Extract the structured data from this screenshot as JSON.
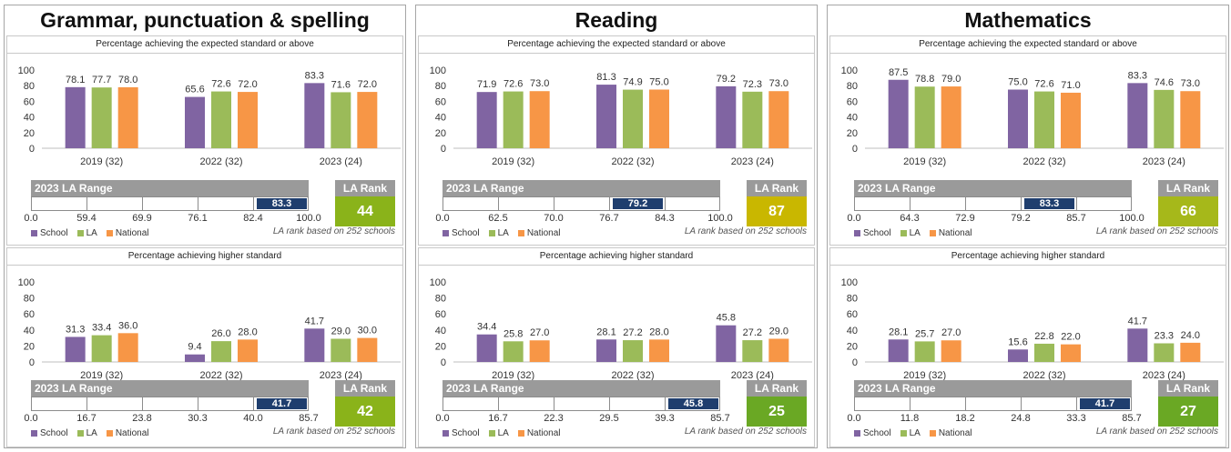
{
  "colors": {
    "school": "#8064a2",
    "la": "#9bbb59",
    "national": "#f79646",
    "range_title_bg": "#9a9a9a",
    "marker_bg": "#1f3e6e"
  },
  "common": {
    "expected_header": "Percentage achieving the expected standard or above",
    "higher_header": "Percentage achieving higher standard",
    "range_title": "2023 LA Range",
    "rank_title": "LA Rank",
    "legend": [
      "School",
      "LA",
      "National"
    ],
    "note": "LA rank based on 252 schools"
  },
  "panels": [
    {
      "title": "Grammar, punctuation & spelling",
      "sections": [
        {
          "header": "expected",
          "chart_data": {
            "type": "bar",
            "categories": [
              "2019 (32)",
              "2022 (32)",
              "2023 (24)"
            ],
            "series": [
              {
                "name": "School",
                "values": [
                  78.1,
                  65.6,
                  83.3
                ]
              },
              {
                "name": "LA",
                "values": [
                  77.7,
                  72.6,
                  71.6
                ]
              },
              {
                "name": "National",
                "values": [
                  78.0,
                  72.0,
                  72.0
                ]
              }
            ],
            "yticks": [
              "0",
              "20",
              "40",
              "60",
              "80",
              "100"
            ],
            "ylim": [
              0,
              100
            ]
          },
          "range": {
            "ticks": [
              "0.0",
              "59.4",
              "69.9",
              "76.1",
              "82.4",
              "100.0"
            ],
            "marker": "83.3",
            "marker_segment": 4
          },
          "rank": {
            "value": "44",
            "color": "#8ab31a"
          }
        },
        {
          "header": "higher",
          "chart_data": {
            "type": "bar",
            "categories": [
              "2019 (32)",
              "2022 (32)",
              "2023 (24)"
            ],
            "series": [
              {
                "name": "School",
                "values": [
                  31.3,
                  9.4,
                  41.7
                ]
              },
              {
                "name": "LA",
                "values": [
                  33.4,
                  26.0,
                  29.0
                ]
              },
              {
                "name": "National",
                "values": [
                  36.0,
                  28.0,
                  30.0
                ]
              }
            ],
            "yticks": [
              "0",
              "20",
              "40",
              "60",
              "80",
              "100"
            ],
            "ylim": [
              0,
              100
            ]
          },
          "range": {
            "ticks": [
              "0.0",
              "16.7",
              "23.8",
              "30.3",
              "40.0",
              "85.7"
            ],
            "marker": "41.7",
            "marker_segment": 4
          },
          "rank": {
            "value": "42",
            "color": "#8ab31a"
          }
        }
      ]
    },
    {
      "title": "Reading",
      "sections": [
        {
          "header": "expected",
          "chart_data": {
            "type": "bar",
            "categories": [
              "2019 (32)",
              "2022 (32)",
              "2023 (24)"
            ],
            "series": [
              {
                "name": "School",
                "values": [
                  71.9,
                  81.3,
                  79.2
                ]
              },
              {
                "name": "LA",
                "values": [
                  72.6,
                  74.9,
                  72.3
                ]
              },
              {
                "name": "National",
                "values": [
                  73.0,
                  75.0,
                  73.0
                ]
              }
            ],
            "yticks": [
              "0",
              "20",
              "40",
              "60",
              "80",
              "100"
            ],
            "ylim": [
              0,
              100
            ]
          },
          "range": {
            "ticks": [
              "0.0",
              "62.5",
              "70.0",
              "76.7",
              "84.3",
              "100.0"
            ],
            "marker": "79.2",
            "marker_segment": 3
          },
          "rank": {
            "value": "87",
            "color": "#c9b700"
          }
        },
        {
          "header": "higher",
          "chart_data": {
            "type": "bar",
            "categories": [
              "2019 (32)",
              "2022 (32)",
              "2023 (24)"
            ],
            "series": [
              {
                "name": "School",
                "values": [
                  34.4,
                  28.1,
                  45.8
                ]
              },
              {
                "name": "LA",
                "values": [
                  25.8,
                  27.2,
                  27.2
                ]
              },
              {
                "name": "National",
                "values": [
                  27.0,
                  28.0,
                  29.0
                ]
              }
            ],
            "yticks": [
              "0",
              "20",
              "40",
              "60",
              "80",
              "100"
            ],
            "ylim": [
              0,
              100
            ]
          },
          "range": {
            "ticks": [
              "0.0",
              "16.7",
              "22.3",
              "29.5",
              "39.3",
              "85.7"
            ],
            "marker": "45.8",
            "marker_segment": 4
          },
          "rank": {
            "value": "25",
            "color": "#6aa824"
          }
        }
      ]
    },
    {
      "title": "Mathematics",
      "sections": [
        {
          "header": "expected",
          "chart_data": {
            "type": "bar",
            "categories": [
              "2019 (32)",
              "2022 (32)",
              "2023 (24)"
            ],
            "series": [
              {
                "name": "School",
                "values": [
                  87.5,
                  75.0,
                  83.3
                ]
              },
              {
                "name": "LA",
                "values": [
                  78.8,
                  72.6,
                  74.6
                ]
              },
              {
                "name": "National",
                "values": [
                  79.0,
                  71.0,
                  73.0
                ]
              }
            ],
            "yticks": [
              "0",
              "20",
              "40",
              "60",
              "80",
              "100"
            ],
            "ylim": [
              0,
              100
            ]
          },
          "range": {
            "ticks": [
              "0.0",
              "64.3",
              "72.9",
              "79.2",
              "85.7",
              "100.0"
            ],
            "marker": "83.3",
            "marker_segment": 3
          },
          "rank": {
            "value": "66",
            "color": "#a6b81a"
          }
        },
        {
          "header": "higher",
          "chart_data": {
            "type": "bar",
            "categories": [
              "2019 (32)",
              "2022 (32)",
              "2023 (24)"
            ],
            "series": [
              {
                "name": "School",
                "values": [
                  28.1,
                  15.6,
                  41.7
                ]
              },
              {
                "name": "LA",
                "values": [
                  25.7,
                  22.8,
                  23.3
                ]
              },
              {
                "name": "National",
                "values": [
                  27.0,
                  22.0,
                  24.0
                ]
              }
            ],
            "yticks": [
              "0",
              "20",
              "40",
              "60",
              "80",
              "100"
            ],
            "ylim": [
              0,
              100
            ]
          },
          "range": {
            "ticks": [
              "0.0",
              "11.8",
              "18.2",
              "24.8",
              "33.3",
              "85.7"
            ],
            "marker": "41.7",
            "marker_segment": 4
          },
          "rank": {
            "value": "27",
            "color": "#6aa824"
          }
        }
      ]
    }
  ]
}
